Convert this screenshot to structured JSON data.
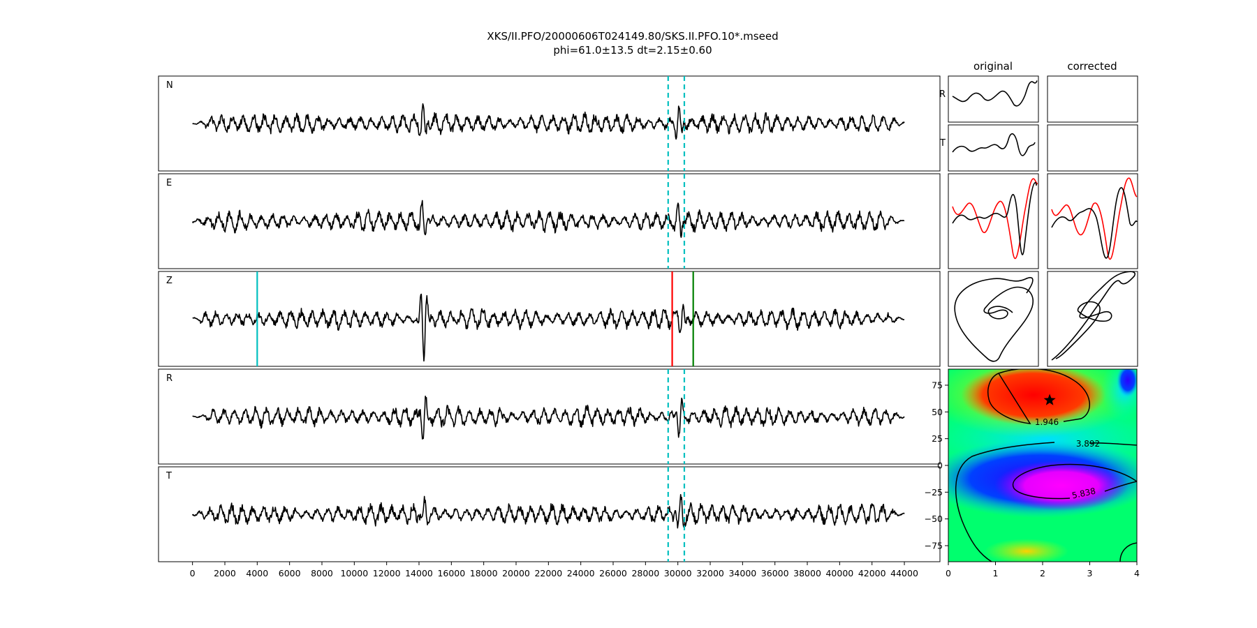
{
  "figure": {
    "title_line1": "XKS/II.PFO/20000606T024149.80/SKS.II.PFO.10*.mseed",
    "title_line2": "phi=61.0±13.5 dt=2.15±0.60"
  },
  "chart_data": [
    {
      "type": "line",
      "subtype": "waveform-stack",
      "series": [
        {
          "name": "N"
        },
        {
          "name": "E"
        },
        {
          "name": "Z"
        },
        {
          "name": "R"
        },
        {
          "name": "T"
        }
      ],
      "x_ticks": [
        0,
        2000,
        4000,
        6000,
        8000,
        10000,
        12000,
        14000,
        16000,
        18000,
        20000,
        22000,
        24000,
        26000,
        28000,
        30000,
        32000,
        34000,
        36000,
        38000,
        40000,
        42000,
        44000
      ],
      "xlim": [
        -2100,
        46200
      ],
      "trace_span": [
        0,
        44000
      ],
      "window_start": 29400,
      "window_end": 30400,
      "z_markers": [
        {
          "x": 4000,
          "color": "#00bfbf"
        },
        {
          "x": 29650,
          "color": "#ff0000"
        },
        {
          "x": 30950,
          "color": "#008000"
        }
      ],
      "colors": {
        "trace": "#000000",
        "window": "#00bfbf"
      }
    },
    {
      "type": "line",
      "subtype": "particle-motion-grid",
      "columns": [
        "original",
        "corrected"
      ],
      "rows": [
        "R",
        "T"
      ],
      "colors": {
        "radial": "#000000",
        "transverse": "#ff0000"
      }
    },
    {
      "type": "heatmap",
      "subtype": "error-surface",
      "x_ticks": [
        0,
        1,
        2,
        3,
        4
      ],
      "y_ticks": [
        75,
        50,
        25,
        0,
        -25,
        -50,
        -75
      ],
      "xlim": [
        0,
        4
      ],
      "ylim": [
        -90,
        90
      ],
      "best_fit": {
        "dt": 2.15,
        "phi": 61.0
      },
      "contour_labels": [
        "1.946",
        "3.892",
        "5.838"
      ],
      "colormap": "hsv"
    }
  ]
}
